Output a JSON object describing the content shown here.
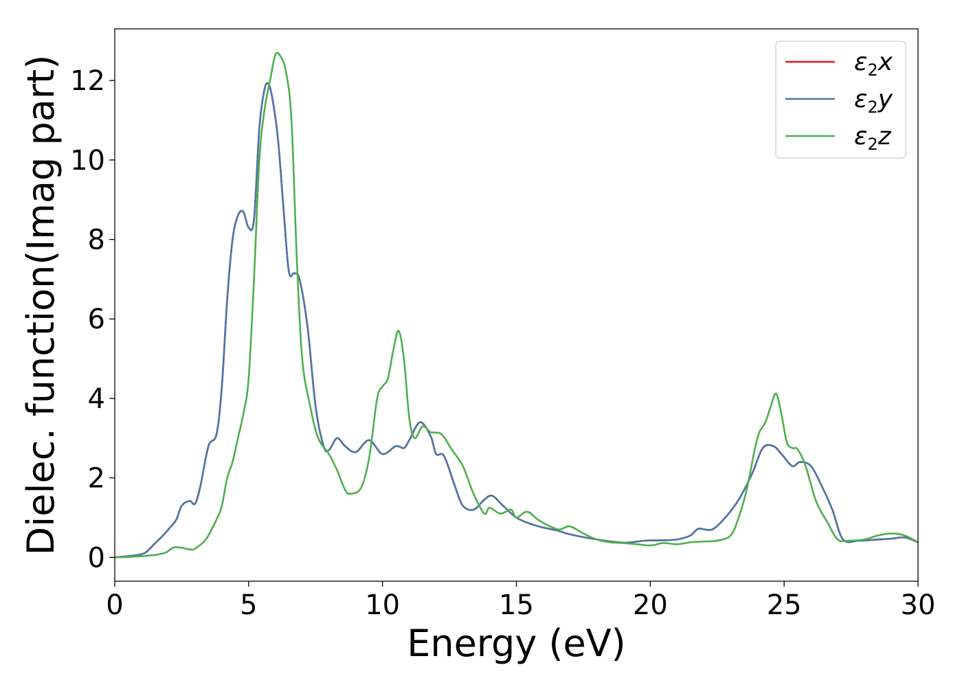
{
  "chart_data": {
    "type": "line",
    "xlabel": "Energy (eV)",
    "ylabel": "Dielec. function(Imag part)",
    "xlim": [
      0,
      30
    ],
    "ylim": [
      -0.6,
      13.3
    ],
    "xticks": [
      0,
      5,
      10,
      15,
      20,
      25,
      30
    ],
    "yticks": [
      0,
      2,
      4,
      6,
      8,
      10,
      12
    ],
    "grid": false,
    "legend_position": "top-right",
    "series": [
      {
        "name": "ε2x",
        "label_main": "ε",
        "label_sub": "2",
        "label_tail": "x",
        "color": "#e41a1c",
        "x": [
          0,
          0.5,
          1,
          1.2,
          1.5,
          1.8,
          2.0,
          2.3,
          2.5,
          2.8,
          3.0,
          3.2,
          3.5,
          3.8,
          4.0,
          4.2,
          4.4,
          4.6,
          4.8,
          5.0,
          5.2,
          5.4,
          5.6,
          5.75,
          5.9,
          6.1,
          6.3,
          6.5,
          6.7,
          6.9,
          7.2,
          7.5,
          7.8,
          8.0,
          8.3,
          8.6,
          9.0,
          9.5,
          10.0,
          10.5,
          10.8,
          11.0,
          11.4,
          11.8,
          12.0,
          12.3,
          12.7,
          13.0,
          13.4,
          13.8,
          14.1,
          14.5,
          15.0,
          15.5,
          16.0,
          16.5,
          17.0,
          18.0,
          19.0,
          19.8,
          20.5,
          21.0,
          21.5,
          21.8,
          22.3,
          22.8,
          23.3,
          23.8,
          24.2,
          24.6,
          24.9,
          25.3,
          25.6,
          26.0,
          26.4,
          26.8,
          27.2,
          27.8,
          28.5,
          29.0,
          29.5,
          30.0
        ],
        "values": [
          0,
          0.03,
          0.08,
          0.15,
          0.35,
          0.55,
          0.7,
          0.95,
          1.3,
          1.42,
          1.35,
          1.8,
          2.8,
          3.1,
          4.3,
          6.5,
          8.0,
          8.6,
          8.7,
          8.3,
          8.5,
          10.8,
          11.8,
          11.9,
          11.5,
          10.5,
          8.8,
          7.2,
          7.15,
          7.0,
          5.8,
          3.8,
          2.8,
          2.7,
          3.0,
          2.8,
          2.65,
          2.95,
          2.6,
          2.8,
          2.75,
          2.95,
          3.4,
          3.05,
          2.6,
          2.55,
          1.8,
          1.3,
          1.2,
          1.45,
          1.55,
          1.3,
          1.0,
          0.85,
          0.75,
          0.68,
          0.58,
          0.45,
          0.37,
          0.42,
          0.43,
          0.45,
          0.55,
          0.72,
          0.7,
          1.0,
          1.45,
          2.1,
          2.75,
          2.8,
          2.6,
          2.3,
          2.4,
          2.3,
          1.8,
          1.2,
          0.45,
          0.42,
          0.45,
          0.47,
          0.5,
          0.38
        ]
      },
      {
        "name": "ε2y",
        "label_main": "ε",
        "label_sub": "2",
        "label_tail": "y",
        "color": "#4a78aa",
        "x": [
          0,
          0.5,
          1,
          1.2,
          1.5,
          1.8,
          2.0,
          2.3,
          2.5,
          2.8,
          3.0,
          3.2,
          3.5,
          3.8,
          4.0,
          4.2,
          4.4,
          4.6,
          4.8,
          5.0,
          5.2,
          5.4,
          5.6,
          5.75,
          5.9,
          6.1,
          6.3,
          6.5,
          6.7,
          6.9,
          7.2,
          7.5,
          7.8,
          8.0,
          8.3,
          8.6,
          9.0,
          9.5,
          10.0,
          10.5,
          10.8,
          11.0,
          11.4,
          11.8,
          12.0,
          12.3,
          12.7,
          13.0,
          13.4,
          13.8,
          14.1,
          14.5,
          15.0,
          15.5,
          16.0,
          16.5,
          17.0,
          18.0,
          19.0,
          19.8,
          20.5,
          21.0,
          21.5,
          21.8,
          22.3,
          22.8,
          23.3,
          23.8,
          24.2,
          24.6,
          24.9,
          25.3,
          25.6,
          26.0,
          26.4,
          26.8,
          27.2,
          27.8,
          28.5,
          29.0,
          29.5,
          30.0
        ],
        "values": [
          0,
          0.03,
          0.08,
          0.15,
          0.35,
          0.55,
          0.7,
          0.95,
          1.3,
          1.42,
          1.35,
          1.8,
          2.8,
          3.1,
          4.3,
          6.5,
          8.0,
          8.6,
          8.7,
          8.3,
          8.5,
          10.8,
          11.8,
          11.9,
          11.5,
          10.5,
          8.8,
          7.2,
          7.15,
          7.0,
          5.8,
          3.8,
          2.8,
          2.7,
          3.0,
          2.8,
          2.65,
          2.95,
          2.6,
          2.8,
          2.75,
          2.95,
          3.4,
          3.05,
          2.6,
          2.55,
          1.8,
          1.3,
          1.2,
          1.45,
          1.55,
          1.3,
          1.0,
          0.85,
          0.75,
          0.68,
          0.58,
          0.45,
          0.37,
          0.42,
          0.43,
          0.45,
          0.55,
          0.72,
          0.7,
          1.0,
          1.45,
          2.1,
          2.75,
          2.8,
          2.6,
          2.3,
          2.4,
          2.3,
          1.8,
          1.2,
          0.45,
          0.42,
          0.45,
          0.47,
          0.5,
          0.38
        ]
      },
      {
        "name": "ε2z",
        "label_main": "ε",
        "label_sub": "2",
        "label_tail": "z",
        "color": "#4daf4a",
        "x": [
          0,
          0.5,
          1,
          1.5,
          1.9,
          2.2,
          2.5,
          2.8,
          3.0,
          3.4,
          3.8,
          4.0,
          4.2,
          4.4,
          4.6,
          4.8,
          5.0,
          5.2,
          5.4,
          5.6,
          5.8,
          6.0,
          6.2,
          6.4,
          6.6,
          6.8,
          7.0,
          7.3,
          7.6,
          8.0,
          8.3,
          8.6,
          8.8,
          9.2,
          9.5,
          9.8,
          10.0,
          10.2,
          10.4,
          10.6,
          10.8,
          11.0,
          11.2,
          11.5,
          11.8,
          12.2,
          12.6,
          13.0,
          13.4,
          13.8,
          14.0,
          14.4,
          14.8,
          15.0,
          15.4,
          15.8,
          16.2,
          16.6,
          17.0,
          17.5,
          18.0,
          18.5,
          19.0,
          19.5,
          20.0,
          20.5,
          21.0,
          21.5,
          22.0,
          22.5,
          23.0,
          23.3,
          23.6,
          24.0,
          24.3,
          24.5,
          24.7,
          24.9,
          25.1,
          25.3,
          25.5,
          25.8,
          26.2,
          26.6,
          27.0,
          27.4,
          28.0,
          28.5,
          29.0,
          29.5,
          30.0
        ],
        "values": [
          0,
          0.01,
          0.03,
          0.06,
          0.12,
          0.25,
          0.24,
          0.2,
          0.22,
          0.45,
          0.95,
          1.3,
          2.0,
          2.4,
          3.0,
          3.6,
          4.5,
          7.0,
          10.0,
          11.3,
          12.0,
          12.65,
          12.6,
          12.2,
          11.0,
          7.5,
          5.0,
          3.8,
          3.0,
          2.6,
          2.2,
          1.7,
          1.6,
          1.75,
          2.5,
          4.0,
          4.3,
          4.5,
          5.2,
          5.7,
          5.0,
          3.5,
          3.0,
          3.3,
          3.15,
          3.1,
          2.7,
          2.3,
          1.6,
          1.1,
          1.25,
          1.1,
          1.2,
          1.0,
          1.15,
          0.95,
          0.8,
          0.7,
          0.78,
          0.6,
          0.45,
          0.38,
          0.36,
          0.33,
          0.3,
          0.36,
          0.33,
          0.38,
          0.4,
          0.42,
          0.55,
          1.0,
          1.7,
          3.0,
          3.4,
          3.8,
          4.12,
          3.6,
          2.9,
          2.75,
          2.72,
          2.3,
          1.4,
          0.9,
          0.45,
          0.42,
          0.45,
          0.55,
          0.6,
          0.55,
          0.38
        ]
      }
    ]
  }
}
